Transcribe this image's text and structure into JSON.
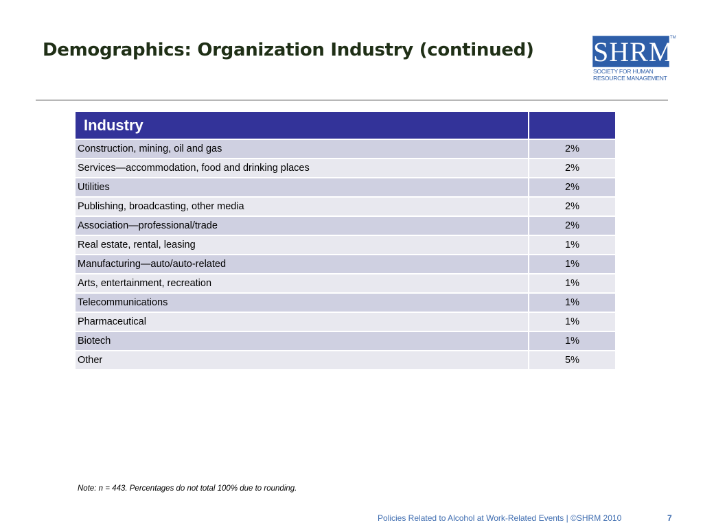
{
  "slide": {
    "title": "Demographics: Organization Industry (continued)"
  },
  "logo": {
    "letters": "SHRM",
    "trademark": "TM",
    "line1": "SOCIETY FOR HUMAN",
    "line2": "RESOURCE MANAGEMENT",
    "color": "#2e5ea8"
  },
  "table": {
    "headers": [
      "Industry",
      ""
    ],
    "header_color": "#333399",
    "rows": [
      {
        "label": "Construction, mining, oil and gas",
        "value": "2%"
      },
      {
        "label": "Services—accommodation, food and drinking places",
        "value": "2%"
      },
      {
        "label": "Utilities",
        "value": "2%"
      },
      {
        "label": "Publishing, broadcasting, other media",
        "value": "2%"
      },
      {
        "label": "Association—professional/trade",
        "value": "2%"
      },
      {
        "label": "Real estate, rental, leasing",
        "value": "1%"
      },
      {
        "label": "Manufacturing—auto/auto-related",
        "value": "1%"
      },
      {
        "label": "Arts, entertainment, recreation",
        "value": "1%"
      },
      {
        "label": "Telecommunications",
        "value": "1%"
      },
      {
        "label": "Pharmaceutical",
        "value": "1%"
      },
      {
        "label": "Biotech",
        "value": "1%"
      },
      {
        "label": "Other",
        "value": "5%"
      }
    ]
  },
  "note": "Note: n = 443. Percentages do not total 100% due to rounding.",
  "footer": {
    "text": "Policies Related to Alcohol at Work-Related Events | ©SHRM 2010",
    "page": "7"
  }
}
